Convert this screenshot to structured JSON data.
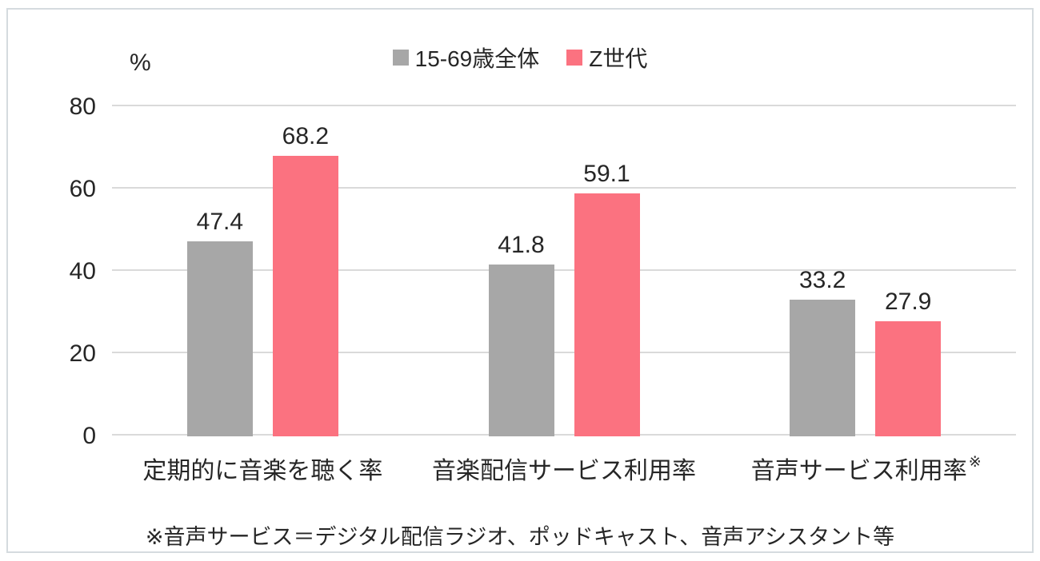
{
  "chart_data": {
    "type": "bar",
    "title": "",
    "unit_label": "%",
    "categories": [
      "定期的に音楽を聴く率",
      "音楽配信サービス利用率",
      "音声サービス利用率"
    ],
    "category_note_marks": [
      "",
      "",
      "※"
    ],
    "series": [
      {
        "name": "15-69歳全体",
        "color": "#a7a7a7",
        "values": [
          47.4,
          41.8,
          33.2
        ]
      },
      {
        "name": "Z世代",
        "color": "#fb7280",
        "values": [
          68.2,
          59.1,
          27.9
        ]
      }
    ],
    "ylim": [
      0,
      80
    ],
    "yticks": [
      0,
      20,
      40,
      60,
      80
    ],
    "grid": true,
    "legend_position": "top"
  },
  "footnote": "※音声サービス＝デジタル配信ラジオ、ポッドキャスト、音声アシスタント等",
  "colors": {
    "bar_gray": "#a7a7a7",
    "bar_pink": "#fb7280",
    "gridline": "#dadada",
    "frame_border": "#d5dbdf",
    "text": "#262626"
  }
}
